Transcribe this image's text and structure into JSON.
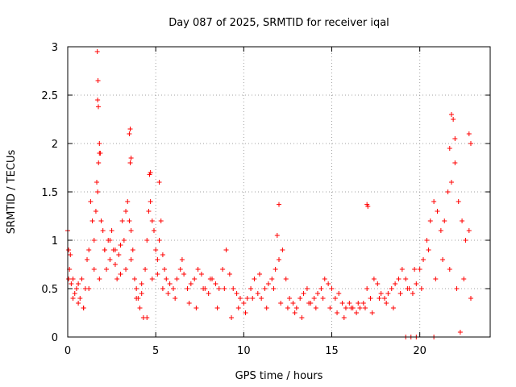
{
  "chart_data": {
    "type": "scatter",
    "title": "Day 087 of 2025, SRMTID for receiver iqal",
    "xlabel": "GPS time / hours",
    "ylabel": "SRMTID / TECUs",
    "xlim": [
      0,
      24
    ],
    "ylim": [
      0,
      3
    ],
    "xticks": [
      0,
      5,
      10,
      15,
      20
    ],
    "yticks": [
      0,
      0.5,
      1,
      1.5,
      2,
      2.5,
      3
    ],
    "xtick_labels": [
      "0",
      "5",
      "10",
      "15",
      "20"
    ],
    "ytick_labels": [
      "0",
      "0.5",
      "1",
      "1.5",
      "2",
      "2.5",
      "3"
    ],
    "grid": true,
    "marker": "+",
    "color": "#ff0000",
    "series": [
      {
        "name": "SRMTID",
        "x": [
          0.0,
          0.05,
          0.1,
          0.15,
          0.2,
          0.3,
          0.4,
          0.5,
          0.6,
          0.7,
          0.8,
          0.9,
          1.0,
          1.1,
          1.2,
          1.3,
          1.4,
          1.5,
          1.6,
          1.65,
          1.7,
          1.75,
          1.8,
          1.9,
          2.0,
          2.1,
          2.2,
          2.3,
          2.4,
          2.5,
          2.6,
          2.7,
          2.8,
          2.9,
          3.0,
          3.1,
          3.2,
          3.3,
          3.4,
          3.5,
          3.55,
          3.6,
          3.7,
          3.8,
          3.9,
          4.0,
          4.1,
          4.2,
          4.3,
          4.4,
          4.5,
          4.6,
          4.7,
          4.8,
          4.9,
          5.0,
          5.1,
          5.2,
          5.3,
          5.4,
          5.5,
          5.6,
          5.8,
          6.0,
          6.2,
          6.4,
          6.6,
          6.8,
          7.0,
          7.2,
          7.4,
          7.6,
          7.8,
          8.0,
          8.2,
          8.4,
          8.6,
          8.8,
          9.0,
          9.2,
          9.4,
          9.6,
          9.8,
          10.0,
          10.2,
          10.4,
          10.6,
          10.8,
          11.0,
          11.2,
          11.4,
          11.6,
          11.8,
          12.0,
          12.2,
          12.4,
          12.6,
          12.8,
          13.0,
          13.2,
          13.4,
          13.6,
          13.8,
          14.0,
          14.2,
          14.4,
          14.6,
          14.8,
          15.0,
          15.2,
          15.4,
          15.6,
          15.8,
          16.0,
          16.2,
          16.4,
          16.6,
          16.8,
          17.0,
          17.2,
          17.4,
          17.6,
          17.8,
          18.0,
          18.2,
          18.4,
          18.6,
          18.8,
          19.0,
          19.2,
          19.4,
          19.6,
          19.8,
          20.0,
          20.2,
          20.4,
          20.6,
          20.8,
          21.0,
          21.2,
          21.4,
          21.6,
          21.8,
          22.0,
          22.2,
          22.4,
          22.6,
          22.8,
          0.05,
          0.3,
          0.6,
          0.9,
          1.2,
          1.5,
          1.8,
          2.1,
          2.4,
          2.7,
          3.0,
          3.3,
          3.6,
          3.9,
          4.2,
          4.5,
          4.8,
          5.1,
          5.4,
          5.7,
          6.1,
          6.5,
          6.9,
          7.3,
          7.7,
          8.1,
          8.5,
          8.9,
          9.3,
          9.7,
          10.1,
          10.5,
          10.9,
          11.3,
          11.7,
          12.1,
          12.5,
          12.9,
          13.3,
          13.7,
          14.1,
          14.5,
          14.9,
          15.3,
          15.7,
          16.1,
          16.5,
          16.9,
          17.3,
          17.7,
          18.1,
          18.5,
          18.9,
          19.3,
          19.7,
          20.1,
          20.5,
          20.9,
          21.3,
          21.7,
          22.1,
          22.5,
          22.9,
          1.68,
          1.72,
          1.7,
          1.74,
          1.8,
          1.85,
          3.5,
          3.55,
          3.6,
          4.65,
          4.7,
          5.2,
          21.8,
          21.9,
          21.7,
          22.0,
          22.8,
          22.9,
          17.0,
          17.05,
          12.0,
          11.9,
          19.2,
          19.5,
          19.8,
          20.8,
          22.3
        ],
        "y": [
          1.1,
          0.9,
          0.7,
          0.85,
          0.55,
          0.6,
          0.45,
          0.5,
          0.35,
          0.4,
          0.6,
          0.3,
          0.5,
          0.8,
          0.9,
          1.4,
          1.2,
          1.0,
          1.3,
          1.6,
          1.5,
          1.8,
          1.9,
          1.2,
          1.1,
          0.9,
          0.7,
          1.0,
          0.8,
          1.1,
          0.9,
          0.75,
          0.6,
          0.85,
          0.95,
          1.2,
          1.0,
          1.3,
          1.4,
          1.2,
          1.8,
          1.1,
          0.9,
          0.6,
          0.5,
          0.4,
          0.3,
          0.55,
          0.2,
          0.7,
          1.0,
          1.3,
          1.4,
          1.2,
          1.1,
          0.9,
          0.8,
          1.0,
          1.2,
          0.85,
          0.7,
          0.6,
          0.55,
          0.5,
          0.6,
          0.7,
          0.65,
          0.5,
          0.55,
          0.6,
          0.7,
          0.65,
          0.5,
          0.45,
          0.6,
          0.55,
          0.5,
          0.7,
          0.9,
          0.65,
          0.5,
          0.45,
          0.4,
          0.35,
          0.4,
          0.5,
          0.6,
          0.45,
          0.4,
          0.5,
          0.55,
          0.6,
          0.7,
          0.8,
          0.9,
          0.6,
          0.4,
          0.35,
          0.3,
          0.4,
          0.45,
          0.5,
          0.35,
          0.4,
          0.45,
          0.5,
          0.6,
          0.55,
          0.5,
          0.4,
          0.45,
          0.35,
          0.3,
          0.35,
          0.3,
          0.25,
          0.3,
          0.35,
          0.5,
          0.4,
          0.6,
          0.55,
          0.45,
          0.4,
          0.45,
          0.5,
          0.55,
          0.6,
          0.7,
          0.6,
          0.5,
          0.45,
          0.55,
          0.7,
          0.8,
          1.0,
          1.2,
          1.4,
          1.3,
          1.1,
          1.2,
          1.5,
          1.6,
          1.8,
          1.4,
          1.2,
          1.0,
          1.1,
          0.6,
          0.4,
          0.55,
          0.3,
          0.5,
          0.7,
          0.6,
          0.9,
          1.0,
          0.9,
          0.65,
          0.7,
          0.8,
          0.4,
          0.45,
          0.2,
          0.6,
          0.65,
          0.5,
          0.45,
          0.4,
          0.8,
          0.35,
          0.3,
          0.5,
          0.6,
          0.3,
          0.5,
          0.2,
          0.3,
          0.25,
          0.4,
          0.65,
          0.3,
          0.5,
          0.35,
          0.3,
          0.25,
          0.2,
          0.35,
          0.3,
          0.4,
          0.3,
          0.25,
          0.2,
          0.3,
          0.35,
          0.3,
          0.25,
          0.4,
          0.35,
          0.3,
          0.45,
          0.5,
          0.7,
          0.5,
          0.9,
          0.6,
          0.8,
          0.7,
          0.5,
          0.6,
          0.4,
          2.95,
          2.65,
          2.45,
          2.38,
          2.0,
          1.9,
          2.1,
          2.15,
          1.85,
          1.68,
          1.7,
          1.6,
          2.3,
          2.25,
          1.95,
          2.05,
          2.1,
          2.0,
          1.37,
          1.35,
          1.37,
          1.05,
          0.0,
          0.0,
          0.0,
          0.0,
          0.05
        ]
      }
    ]
  }
}
